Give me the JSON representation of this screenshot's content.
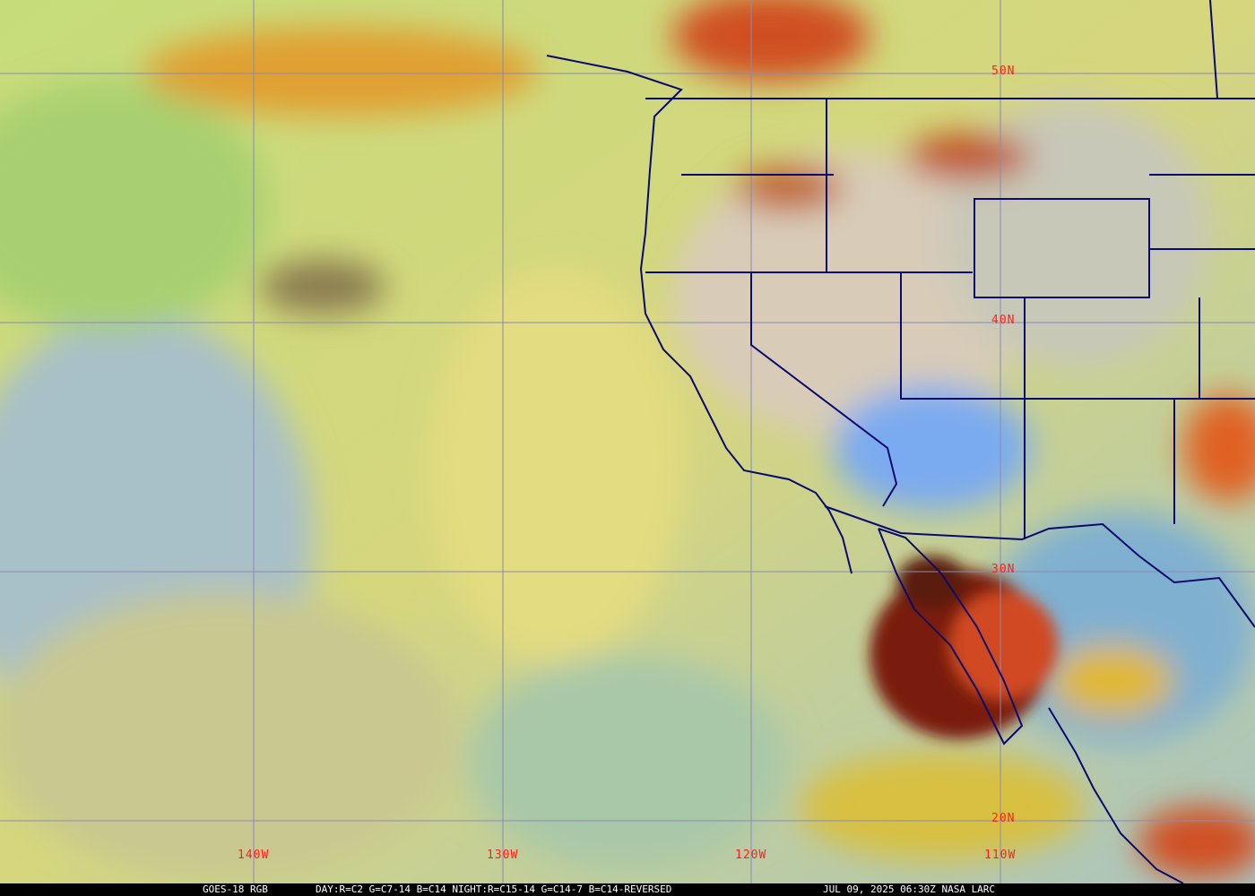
{
  "caption": {
    "satellite": "GOES-18 RGB",
    "recipe": "DAY:R=C2 G=C7-14 B=C14 NIGHT:R=C15-14 G=C14-7 B=C14-REVERSED",
    "timestamp": "JUL 09, 2025 06:30Z NASA LARC"
  },
  "grid": {
    "latitudes": [
      "50N",
      "40N",
      "30N",
      "20N"
    ],
    "longitudes": [
      "140W",
      "130W",
      "120W",
      "110W"
    ]
  },
  "colors": {
    "grid": "#8a8ab4",
    "boundaries": "#0a0a6e",
    "labels": "#ff1e1e",
    "deep_convection": "#7a1a10"
  }
}
